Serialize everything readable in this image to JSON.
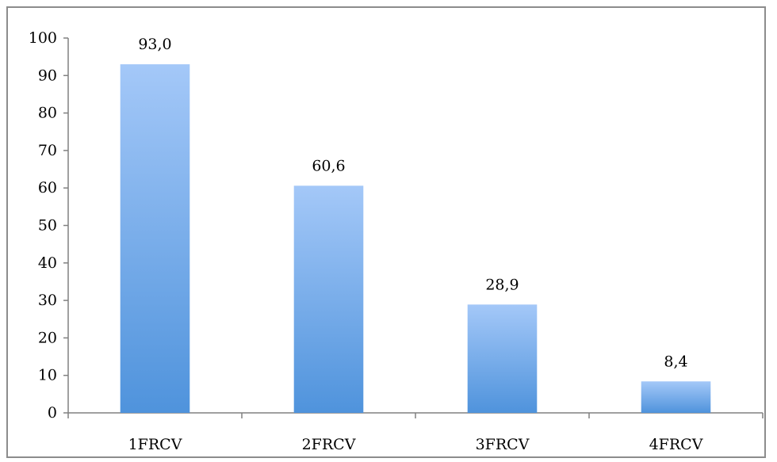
{
  "chart_data": {
    "type": "bar",
    "categories": [
      "1FRCV",
      "2FRCV",
      "3FRCV",
      "4FRCV"
    ],
    "values": [
      93.0,
      60.6,
      28.9,
      8.4
    ],
    "data_labels": [
      "93,0",
      "60,6",
      "28,9",
      "8,4"
    ],
    "y_ticks": [
      "0",
      "10",
      "20",
      "30",
      "40",
      "50",
      "60",
      "70",
      "80",
      "90",
      "100"
    ],
    "ylim": [
      0,
      100
    ],
    "title": "",
    "xlabel": "",
    "ylabel": "",
    "grid": false,
    "legend": "none",
    "colors": {
      "bar_top": "#a4c8f8",
      "bar_bottom": "#4f93dc",
      "axis": "#808080",
      "frame": "#8c8c8c"
    }
  }
}
